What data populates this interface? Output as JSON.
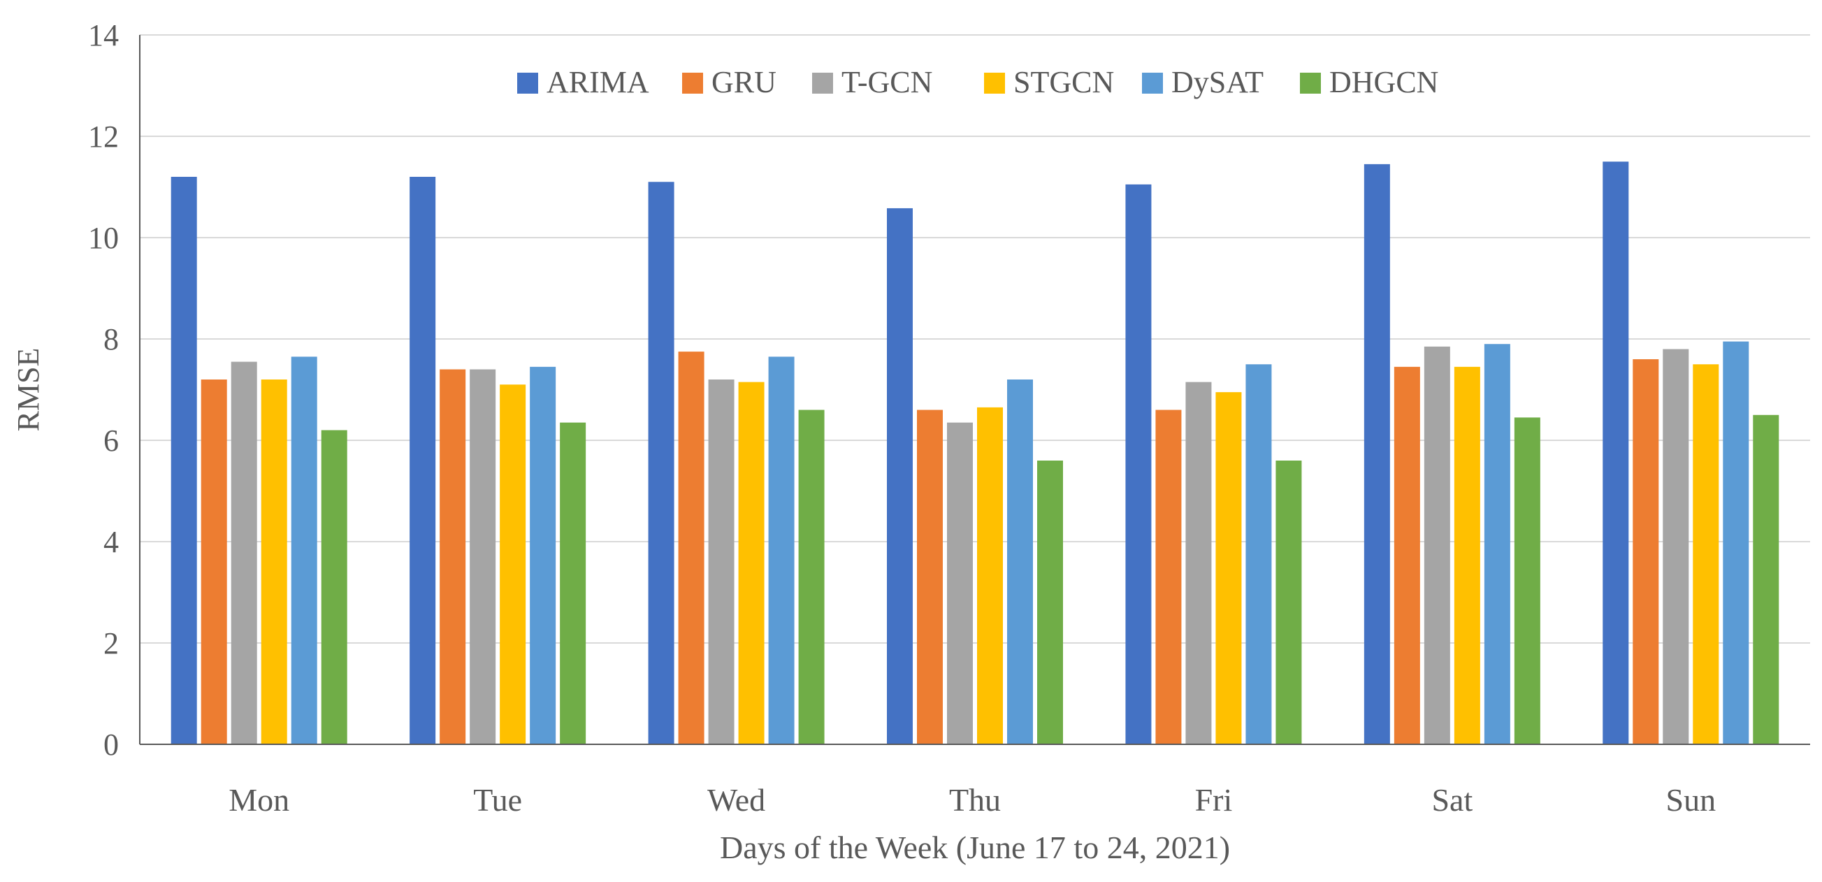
{
  "chart_data": {
    "type": "bar",
    "title": "",
    "xlabel": "Days of the Week (June 17 to 24, 2021)",
    "ylabel": "RMSE",
    "ylim": [
      0,
      14
    ],
    "yticks": [
      0,
      2,
      4,
      6,
      8,
      10,
      12,
      14
    ],
    "grid": true,
    "legend_position": "top-center",
    "categories": [
      "Mon",
      "Tue",
      "Wed",
      "Thu",
      "Fri",
      "Sat",
      "Sun"
    ],
    "series": [
      {
        "name": "ARIMA",
        "color": "#4472C4",
        "values": [
          11.2,
          11.2,
          11.1,
          10.58,
          11.05,
          11.45,
          11.5
        ]
      },
      {
        "name": "GRU",
        "color": "#ED7D31",
        "values": [
          7.2,
          7.4,
          7.75,
          6.6,
          6.6,
          7.45,
          7.6
        ]
      },
      {
        "name": "T-GCN",
        "color": "#A5A5A5",
        "values": [
          7.55,
          7.4,
          7.2,
          6.35,
          7.15,
          7.85,
          7.8
        ]
      },
      {
        "name": "STGCN",
        "color": "#FFC000",
        "values": [
          7.2,
          7.1,
          7.15,
          6.65,
          6.95,
          7.45,
          7.5
        ]
      },
      {
        "name": "DySAT",
        "color": "#5B9BD5",
        "values": [
          7.65,
          7.45,
          7.65,
          7.2,
          7.5,
          7.9,
          7.95
        ]
      },
      {
        "name": "DHGCN",
        "color": "#70AD47",
        "values": [
          6.2,
          6.35,
          6.6,
          5.6,
          5.6,
          6.45,
          6.5
        ]
      }
    ]
  }
}
